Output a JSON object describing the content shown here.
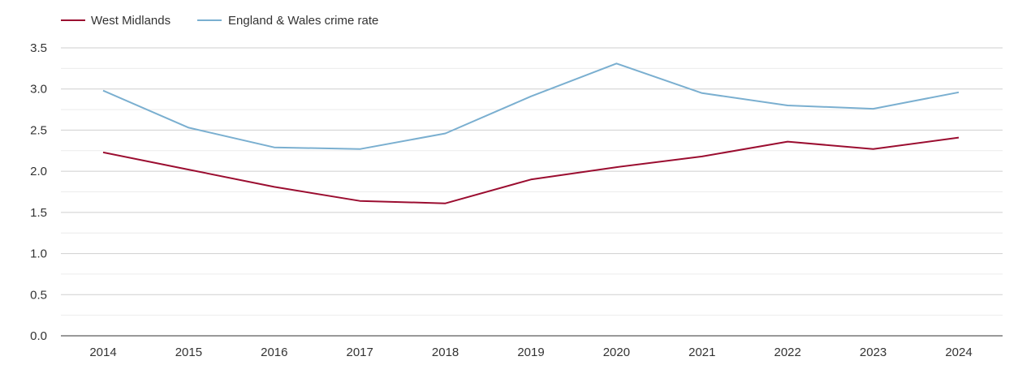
{
  "chart_data": {
    "type": "line",
    "title": "",
    "xlabel": "",
    "ylabel": "",
    "categories": [
      "2014",
      "2015",
      "2016",
      "2017",
      "2018",
      "2019",
      "2020",
      "2021",
      "2022",
      "2023",
      "2024"
    ],
    "ylim": [
      0,
      3.5
    ],
    "yticks": [
      "0.0",
      "0.5",
      "1.0",
      "1.5",
      "2.0",
      "2.5",
      "3.0",
      "3.5"
    ],
    "grid": true,
    "legend_position": "top-left",
    "series": [
      {
        "name": "West Midlands",
        "color": "#9b0d30",
        "values": [
          2.23,
          2.02,
          1.81,
          1.64,
          1.61,
          1.9,
          2.05,
          2.18,
          2.36,
          2.27,
          2.41
        ]
      },
      {
        "name": "England & Wales crime rate",
        "color": "#7aafd0",
        "values": [
          2.98,
          2.53,
          2.29,
          2.27,
          2.46,
          2.91,
          3.31,
          2.95,
          2.8,
          2.76,
          2.96
        ]
      }
    ]
  }
}
